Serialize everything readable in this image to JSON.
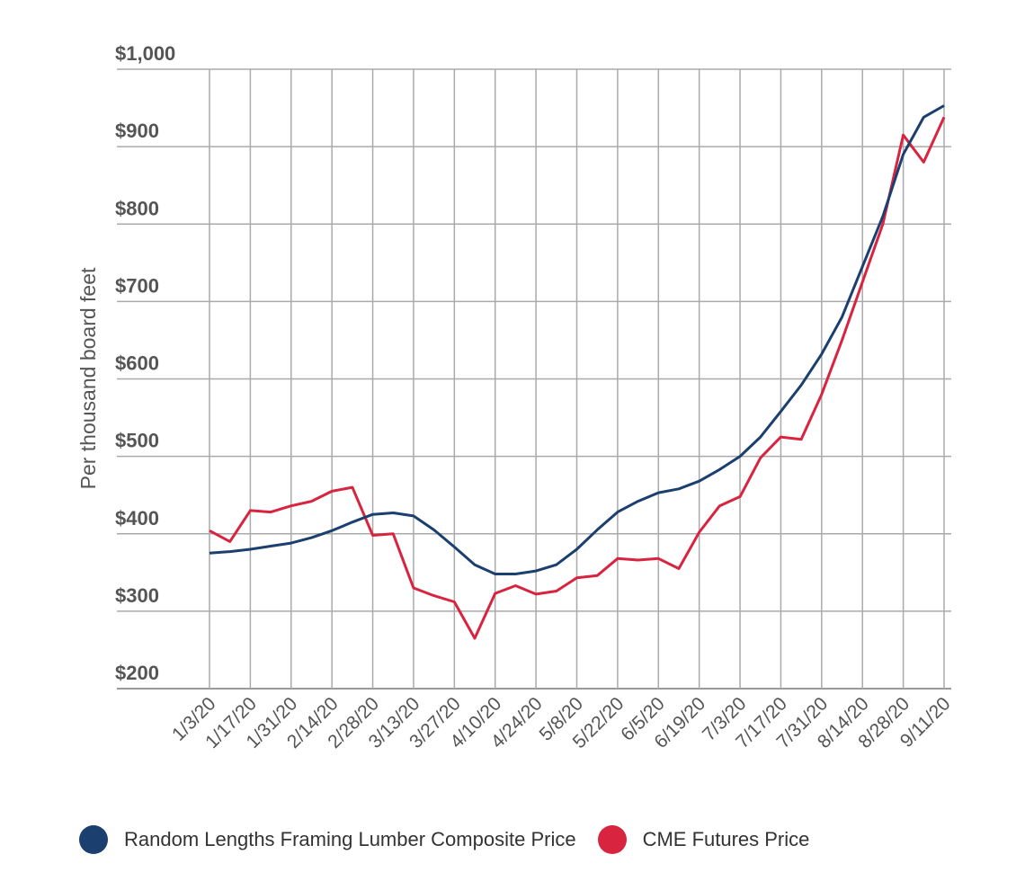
{
  "chart_data": {
    "type": "line",
    "title": "",
    "xlabel": "",
    "ylabel": "Per thousand board feet",
    "ylim": [
      200,
      1000
    ],
    "yticks": [
      200,
      300,
      400,
      500,
      600,
      700,
      800,
      900,
      1000
    ],
    "ytick_labels": [
      "$200",
      "$300",
      "$400",
      "$500",
      "$600",
      "$700",
      "$800",
      "$900",
      "$1,000"
    ],
    "xtick_labels": [
      "1/3/20",
      "1/17/20",
      "1/31/20",
      "2/14/20",
      "2/28/20",
      "3/13/20",
      "3/27/20",
      "4/10/20",
      "4/24/20",
      "5/8/20",
      "5/22/20",
      "6/5/20",
      "6/19/20",
      "7/3/20",
      "7/17/20",
      "7/31/20",
      "8/14/20",
      "8/28/20",
      "9/11/20"
    ],
    "x_frequency": "weekly",
    "grid": true,
    "legend_position": "bottom",
    "series": [
      {
        "name": "Random Lengths Framing Lumber Composite Price",
        "color": "#1b3f6e",
        "values": [
          375,
          377,
          380,
          384,
          388,
          395,
          404,
          415,
          425,
          427,
          423,
          405,
          383,
          360,
          348,
          348,
          352,
          360,
          380,
          405,
          428,
          442,
          453,
          458,
          468,
          483,
          500,
          525,
          558,
          592,
          632,
          680,
          745,
          810,
          890,
          938,
          953
        ]
      },
      {
        "name": "CME Futures Price",
        "color": "#d8243f",
        "values": [
          404,
          390,
          430,
          428,
          436,
          442,
          455,
          460,
          398,
          400,
          330,
          320,
          312,
          265,
          323,
          333,
          322,
          326,
          343,
          346,
          368,
          366,
          368,
          355,
          402,
          436,
          448,
          498,
          525,
          522,
          580,
          650,
          725,
          800,
          915,
          880,
          938
        ]
      }
    ]
  }
}
